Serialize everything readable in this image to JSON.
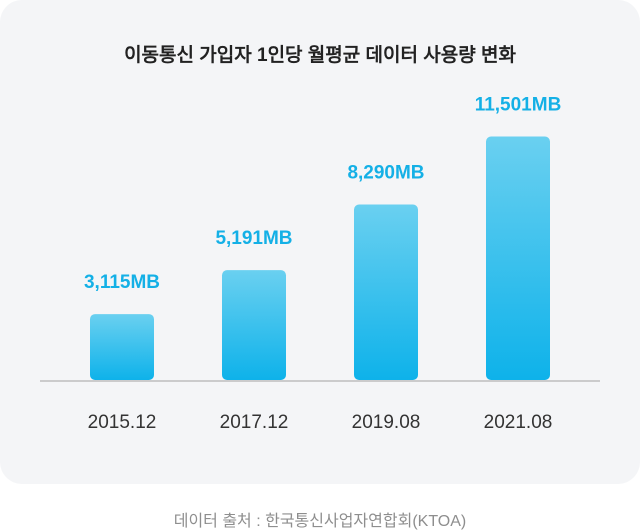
{
  "colors": {
    "card_bg": "#f4f5f7",
    "bar_top": "#6ad0f0",
    "bar_bottom": "#0eb2ea",
    "value_label": "#14b0e6",
    "axis": "#bdbdbd",
    "tick_label": "#333333"
  },
  "chart_data": {
    "type": "bar",
    "title": "이동통신 가입자 1인당 월평균 데이터 사용량 변화",
    "categories": [
      "2015.12",
      "2017.12",
      "2019.08",
      "2021.08"
    ],
    "values": [
      3115,
      5191,
      8290,
      11501
    ],
    "value_labels": [
      "3,115MB",
      "5,191MB",
      "8,290MB",
      "11,501MB"
    ],
    "unit": "MB",
    "xlabel": "",
    "ylabel": "",
    "ylim": [
      0,
      12000
    ],
    "grid": false,
    "legend": "none"
  },
  "source": "데이터 출처 : 한국통신사업자연합회(KTOA)"
}
